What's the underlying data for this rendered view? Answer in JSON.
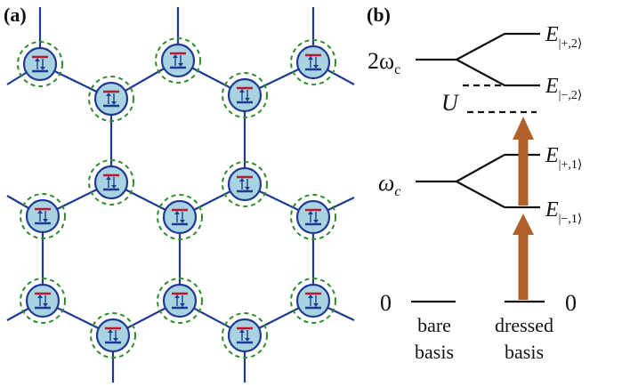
{
  "panel_a": {
    "label": "(a)"
  },
  "panel_b": {
    "label": "(b)",
    "levels": {
      "two_omega": {
        "base": "2ω",
        "sub": "c"
      },
      "omega": {
        "base": "ω",
        "sub": "c"
      },
      "U": "U",
      "zero_left": "0",
      "zero_right": "0",
      "E_plus_2": {
        "base": "E",
        "sub": "|+,2⟩"
      },
      "E_minus_2": {
        "base": "E",
        "sub": "|−,2⟩"
      },
      "E_plus_1": {
        "base": "E",
        "sub": "|+,1⟩"
      },
      "E_minus_1": {
        "base": "E",
        "sub": "|−,1⟩"
      }
    },
    "captions": {
      "bare_line1": "bare",
      "bare_line2": "basis",
      "dressed_line1": "dressed",
      "dressed_line2": "basis"
    }
  },
  "colors": {
    "lattice_line": "#1f3a93",
    "node_fill": "#a9d3e0",
    "node_stroke": "#1f3a93",
    "dashed_ring": "#2e8b2e",
    "level_top": "#c0152f",
    "level_bottom": "#1f3a93",
    "arrow": "#b0602a"
  }
}
